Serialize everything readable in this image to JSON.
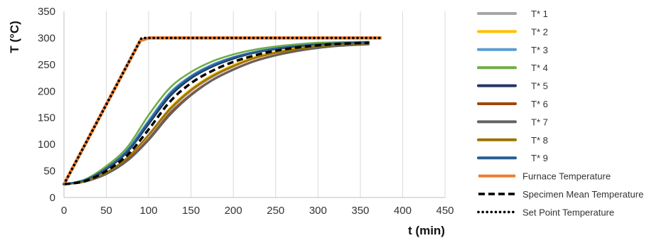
{
  "chart_data": {
    "type": "line",
    "xlabel": "t (min)",
    "ylabel": "T (°C)",
    "xlim": [
      0,
      450
    ],
    "ylim": [
      0,
      350
    ],
    "xticks": [
      0,
      50,
      100,
      150,
      200,
      250,
      300,
      350,
      400,
      450
    ],
    "yticks": [
      0,
      50,
      100,
      150,
      200,
      250,
      300,
      350
    ],
    "grid": "vertical",
    "legend_position": "right",
    "series": [
      {
        "name": "T* 1",
        "color": "#a6a6a6",
        "style": "solid",
        "x": [
          0,
          25,
          50,
          75,
          100,
          125,
          150,
          175,
          200,
          225,
          250,
          275,
          300,
          325,
          360
        ],
        "y": [
          25,
          30,
          45,
          72,
          113,
          163,
          200,
          226,
          246,
          262,
          273,
          280,
          285,
          288,
          290
        ]
      },
      {
        "name": "T* 2",
        "color": "#ffc000",
        "style": "solid",
        "x": [
          0,
          25,
          50,
          75,
          100,
          125,
          150,
          175,
          200,
          225,
          250,
          275,
          300,
          325,
          360
        ],
        "y": [
          25,
          30,
          46,
          74,
          118,
          168,
          204,
          230,
          249,
          264,
          274,
          281,
          286,
          289,
          291
        ]
      },
      {
        "name": "T* 3",
        "color": "#5b9bd5",
        "style": "solid",
        "x": [
          0,
          25,
          50,
          75,
          100,
          125,
          150,
          175,
          200,
          225,
          250,
          275,
          300,
          325,
          360
        ],
        "y": [
          25,
          33,
          56,
          90,
          145,
          197,
          229,
          250,
          264,
          274,
          281,
          286,
          289,
          291,
          292
        ]
      },
      {
        "name": "T* 4",
        "color": "#70ad47",
        "style": "solid",
        "x": [
          0,
          25,
          50,
          75,
          100,
          125,
          150,
          175,
          200,
          225,
          250,
          275,
          300,
          325,
          360
        ],
        "y": [
          25,
          34,
          59,
          95,
          155,
          206,
          236,
          256,
          269,
          278,
          284,
          288,
          291,
          292,
          293
        ]
      },
      {
        "name": "T* 5",
        "color": "#203864",
        "style": "solid",
        "x": [
          0,
          25,
          50,
          75,
          100,
          125,
          150,
          175,
          200,
          225,
          250,
          275,
          300,
          325,
          360
        ],
        "y": [
          25,
          32,
          53,
          86,
          138,
          190,
          224,
          246,
          261,
          272,
          279,
          284,
          288,
          290,
          291
        ]
      },
      {
        "name": "T* 6",
        "color": "#9e480e",
        "style": "solid",
        "x": [
          0,
          25,
          50,
          75,
          100,
          125,
          150,
          175,
          200,
          225,
          250,
          275,
          300,
          325,
          360
        ],
        "y": [
          25,
          30,
          45,
          71,
          110,
          158,
          194,
          221,
          241,
          257,
          268,
          276,
          282,
          286,
          289
        ]
      },
      {
        "name": "T* 7",
        "color": "#636363",
        "style": "solid",
        "x": [
          0,
          25,
          50,
          75,
          100,
          125,
          150,
          175,
          200,
          225,
          250,
          275,
          300,
          325,
          360
        ],
        "y": [
          25,
          30,
          44,
          69,
          108,
          155,
          192,
          220,
          240,
          256,
          267,
          275,
          281,
          285,
          288
        ]
      },
      {
        "name": "T* 8",
        "color": "#997300",
        "style": "solid",
        "x": [
          0,
          25,
          50,
          75,
          100,
          125,
          150,
          175,
          200,
          225,
          250,
          275,
          300,
          325,
          360
        ],
        "y": [
          25,
          31,
          47,
          75,
          118,
          166,
          202,
          228,
          247,
          262,
          272,
          279,
          284,
          287,
          290
        ]
      },
      {
        "name": "T* 9",
        "color": "#255e91",
        "style": "solid",
        "x": [
          0,
          25,
          50,
          75,
          100,
          125,
          150,
          175,
          200,
          225,
          250,
          275,
          300,
          325,
          360
        ],
        "y": [
          25,
          33,
          55,
          88,
          142,
          194,
          227,
          248,
          263,
          273,
          280,
          285,
          288,
          290,
          292
        ]
      },
      {
        "name": "Furnace Temperature",
        "color": "#ed7d31",
        "style": "solid",
        "x": [
          0,
          90,
          100,
          375
        ],
        "y": [
          25,
          295,
          300,
          300
        ]
      },
      {
        "name": "Specimen Mean Temperature",
        "color": "#000000",
        "style": "dashed",
        "x": [
          0,
          25,
          50,
          75,
          100,
          125,
          150,
          175,
          200,
          225,
          250,
          275,
          300,
          325,
          360
        ],
        "y": [
          25,
          31,
          50,
          80,
          128,
          180,
          215,
          238,
          255,
          267,
          276,
          282,
          286,
          289,
          291
        ]
      },
      {
        "name": "Set Point Temperature",
        "color": "#000000",
        "style": "dotted",
        "x": [
          0,
          91.7,
          375
        ],
        "y": [
          25,
          300,
          300
        ]
      }
    ]
  }
}
